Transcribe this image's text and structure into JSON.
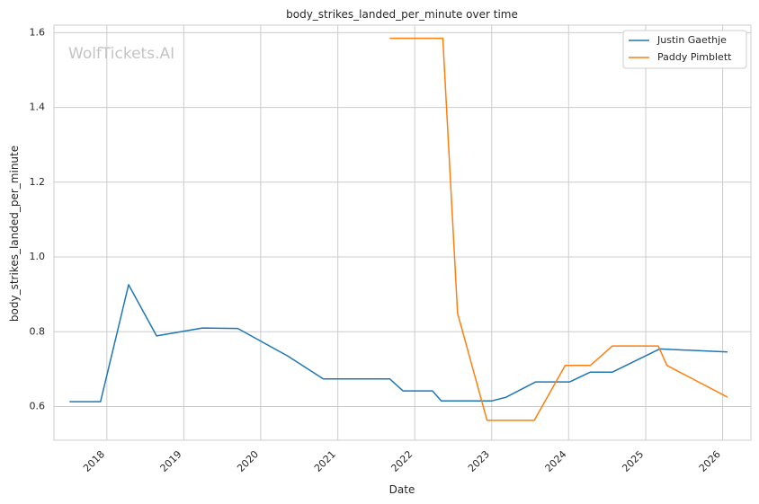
{
  "chart_data": {
    "type": "line",
    "title": "body_strikes_landed_per_minute over time",
    "xlabel": "Date",
    "ylabel": "body_strikes_landed_per_minute",
    "watermark": "WolfTickets.AI",
    "x_ticks": [
      "2018",
      "2019",
      "2020",
      "2021",
      "2022",
      "2023",
      "2024",
      "2025",
      "2026"
    ],
    "y_ticks": [
      "0.6",
      "0.8",
      "1.0",
      "1.2",
      "1.4",
      "1.6"
    ],
    "xlim": [
      "2017-04-25",
      "2026-05-15"
    ],
    "ylim": [
      0.51,
      1.62
    ],
    "grid": true,
    "legend_position": "top-right",
    "series": [
      {
        "name": "Justin Gaethje",
        "color": "#1f77b4",
        "points": [
          {
            "x": "2017-07-08",
            "y": 0.613
          },
          {
            "x": "2017-12-02",
            "y": 0.613
          },
          {
            "x": "2018-04-14",
            "y": 0.926
          },
          {
            "x": "2018-08-25",
            "y": 0.789
          },
          {
            "x": "2019-03-30",
            "y": 0.81
          },
          {
            "x": "2019-09-14",
            "y": 0.809
          },
          {
            "x": "2020-05-09",
            "y": 0.735
          },
          {
            "x": "2020-10-24",
            "y": 0.674
          },
          {
            "x": "2021-09-04",
            "y": 0.674
          },
          {
            "x": "2021-11-06",
            "y": 0.642
          },
          {
            "x": "2022-03-26",
            "y": 0.642
          },
          {
            "x": "2022-05-07",
            "y": 0.615
          },
          {
            "x": "2022-12-31",
            "y": 0.615
          },
          {
            "x": "2023-03-11",
            "y": 0.625
          },
          {
            "x": "2023-07-29",
            "y": 0.666
          },
          {
            "x": "2024-01-06",
            "y": 0.666
          },
          {
            "x": "2024-04-13",
            "y": 0.692
          },
          {
            "x": "2024-07-27",
            "y": 0.692
          },
          {
            "x": "2025-03-08",
            "y": 0.754
          },
          {
            "x": "2026-01-24",
            "y": 0.746
          }
        ]
      },
      {
        "name": "Paddy Pimblett",
        "color": "#ff7f0e",
        "points": [
          {
            "x": "2021-09-04",
            "y": 1.585
          },
          {
            "x": "2022-05-14",
            "y": 1.585
          },
          {
            "x": "2022-07-23",
            "y": 0.85
          },
          {
            "x": "2022-12-10",
            "y": 0.563
          },
          {
            "x": "2023-07-22",
            "y": 0.563
          },
          {
            "x": "2023-12-16",
            "y": 0.71
          },
          {
            "x": "2024-04-13",
            "y": 0.71
          },
          {
            "x": "2024-07-27",
            "y": 0.762
          },
          {
            "x": "2025-03-01",
            "y": 0.762
          },
          {
            "x": "2025-04-12",
            "y": 0.71
          },
          {
            "x": "2026-01-24",
            "y": 0.625
          }
        ]
      }
    ]
  }
}
